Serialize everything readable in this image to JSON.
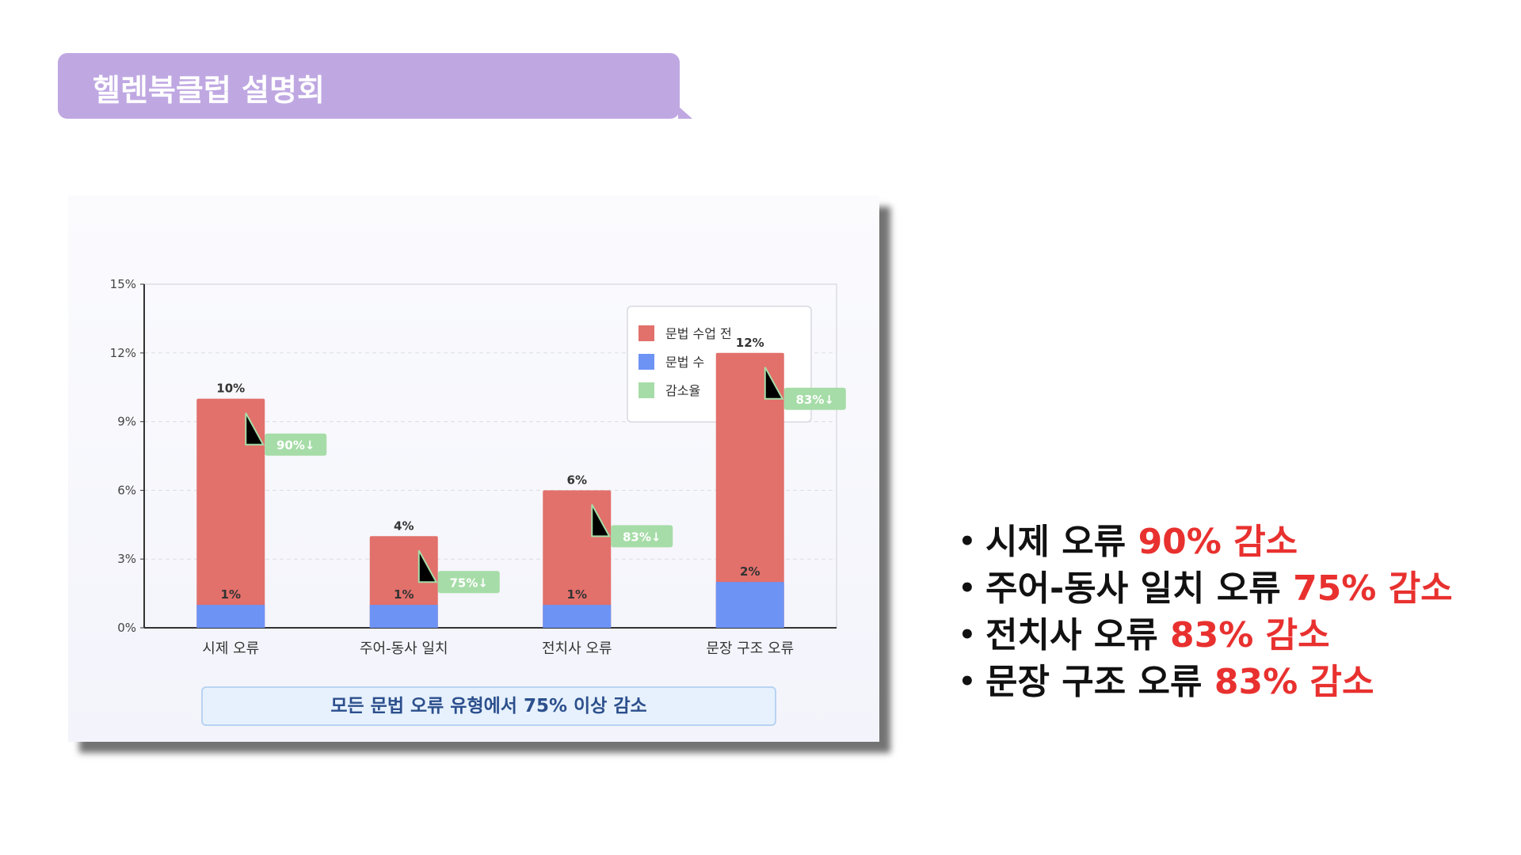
{
  "header": {
    "title": "헬렌북클럽 설명회"
  },
  "chart_data": {
    "type": "bar",
    "stacked": false,
    "categories": [
      "시제 오류",
      "주어-동사 일치",
      "전치사 오류",
      "문장 구조 오류"
    ],
    "series": [
      {
        "name": "문법 수업 전",
        "color": "#e2706b",
        "values": [
          10,
          4,
          6,
          12
        ],
        "labels": [
          "10%",
          "4%",
          "6%",
          "12%"
        ]
      },
      {
        "name": "문법 수",
        "color": "#6d93f5",
        "values": [
          1,
          1,
          1,
          2
        ],
        "labels": [
          "1%",
          "1%",
          "1%",
          "2%"
        ]
      }
    ],
    "reduction": {
      "name": "감소율",
      "color": "#a6dca7",
      "values": [
        90,
        75,
        83,
        83
      ],
      "labels": [
        "90%↓",
        "75%↓",
        "83%↓",
        "83%↓"
      ]
    },
    "y_ticks": [
      "0%",
      "3%",
      "6%",
      "9%",
      "12%",
      "15%"
    ],
    "ylim": [
      0,
      15
    ],
    "grid": true,
    "legend_position": "top-right",
    "summary": "모든 문법 오류 유형에서 75% 이상 감소"
  },
  "bullets": [
    {
      "text": "시제 오류 ",
      "highlight": "90% 감소"
    },
    {
      "text": "주어-동사 일치 오류 ",
      "highlight": "75% 감소"
    },
    {
      "text": "전치사 오류 ",
      "highlight": "83% 감소"
    },
    {
      "text": "문장 구조 오류 ",
      "highlight": "83% 감소"
    }
  ]
}
